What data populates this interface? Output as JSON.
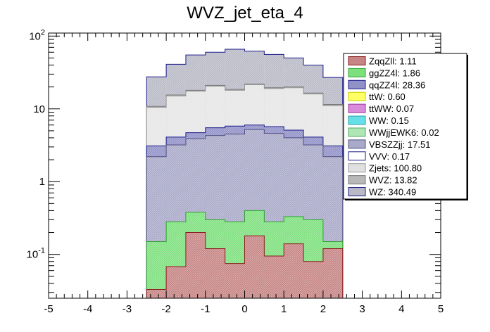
{
  "chart_data": {
    "type": "bar",
    "title": "WVZ_jet_eta_4",
    "xlabel": "",
    "ylabel": "",
    "stacked": true,
    "y_scale": "log",
    "xlim": [
      -5,
      5
    ],
    "ylim": [
      0.025,
      110
    ],
    "x_ticks": [
      "-5",
      "-4",
      "-3",
      "-2",
      "-1",
      "0",
      "1",
      "2",
      "3",
      "4",
      "5"
    ],
    "y_ticks": [
      {
        "value": 0.1,
        "base": "10",
        "exp": "-1"
      },
      {
        "value": 1,
        "label": "1"
      },
      {
        "value": 10,
        "label": "10"
      },
      {
        "value": 100,
        "base": "10",
        "exp": "2"
      }
    ],
    "bin_edges": [
      -2.5,
      -2.0,
      -1.5,
      -1.0,
      -0.5,
      0.0,
      0.5,
      1.0,
      1.5,
      2.0,
      2.5
    ],
    "stack_totals": [
      {
        "name": "ZqqZll",
        "values": [
          0.033,
          0.068,
          0.2,
          0.12,
          0.075,
          0.18,
          0.095,
          0.14,
          0.08,
          0.12
        ]
      },
      {
        "name": "ggZZ4l",
        "values": [
          0.15,
          0.28,
          0.38,
          0.3,
          0.28,
          0.4,
          0.28,
          0.33,
          0.3,
          0.15
        ]
      },
      {
        "name": "VBSZZjj",
        "values": [
          2.2,
          3.2,
          3.9,
          4.3,
          4.5,
          5.2,
          4.6,
          4.0,
          3.2,
          2.2
        ]
      },
      {
        "name": "qqZZ4l",
        "values": [
          3.1,
          4.1,
          4.7,
          5.5,
          5.8,
          6.0,
          5.7,
          5.1,
          4.1,
          3.1
        ]
      },
      {
        "name": "Zjets",
        "values": [
          10.5,
          15.0,
          17.5,
          20.5,
          18.0,
          21.5,
          19.0,
          19.5,
          16.0,
          11.0
        ]
      },
      {
        "name": "WVZ",
        "values": [
          10.8,
          15.5,
          18.0,
          21.0,
          18.5,
          22.0,
          19.5,
          20.0,
          16.5,
          11.5
        ]
      },
      {
        "name": "WZ",
        "values": [
          27.5,
          41.0,
          55.0,
          60.0,
          66.0,
          62.0,
          56.0,
          50.0,
          40.0,
          27.0
        ]
      }
    ],
    "legend": {
      "placement": "right",
      "entries": [
        {
          "label": "ZqqZll: 1.11",
          "fill": "#c68484",
          "edge": "#8b1a1a"
        },
        {
          "label": "ggZZ4l: 1.86",
          "fill": "#7de07d",
          "edge": "#2fa02f"
        },
        {
          "label": "qqZZ4l: 28.36",
          "fill": "#9191c8",
          "edge": "#1a1a8b"
        },
        {
          "label": "ttW: 0.60",
          "fill": "#ffff66",
          "edge": "#cccc00"
        },
        {
          "label": "ttWW: 0.07",
          "fill": "#d98cd9",
          "edge": "#993399"
        },
        {
          "label": "WW: 0.15",
          "fill": "#66e0e6",
          "edge": "#2aa0a8"
        },
        {
          "label": "WWjjEWK6: 0.02",
          "fill": "#aee6b4",
          "edge": "#55aa66"
        },
        {
          "label": "VBSZZjj: 17.51",
          "fill": "#a9a9c9",
          "edge": "#505080"
        },
        {
          "label": "VVV: 0.17",
          "fill": "#ffffff",
          "edge": "#1a1a8b"
        },
        {
          "label": "Zjets: 100.80",
          "fill": "#e0e0e0",
          "edge": "#999999"
        },
        {
          "label": "WVZ: 13.82",
          "fill": "#b8b8b8",
          "edge": "#777777"
        },
        {
          "label": "WZ: 340.49",
          "fill": "#b9b9c6",
          "edge": "#1a1a8b"
        }
      ]
    },
    "layer_styles": {
      "ZqqZll": {
        "fill": "#c68484",
        "edge": "#8b1a1a"
      },
      "ggZZ4l": {
        "fill": "#7de07d",
        "edge": "#2fa02f"
      },
      "VBSZZjj": {
        "fill": "#a9a9c9",
        "edge": "#505080"
      },
      "qqZZ4l": {
        "fill": "#9191c8",
        "edge": "#1a1a8b"
      },
      "Zjets": {
        "fill": "#e6e6e6",
        "edge": "#999999"
      },
      "WVZ": {
        "fill": "#b8b8b8",
        "edge": "#777777"
      },
      "WZ": {
        "fill": "#b9b9c6",
        "edge": "#1a1a8b"
      }
    }
  }
}
